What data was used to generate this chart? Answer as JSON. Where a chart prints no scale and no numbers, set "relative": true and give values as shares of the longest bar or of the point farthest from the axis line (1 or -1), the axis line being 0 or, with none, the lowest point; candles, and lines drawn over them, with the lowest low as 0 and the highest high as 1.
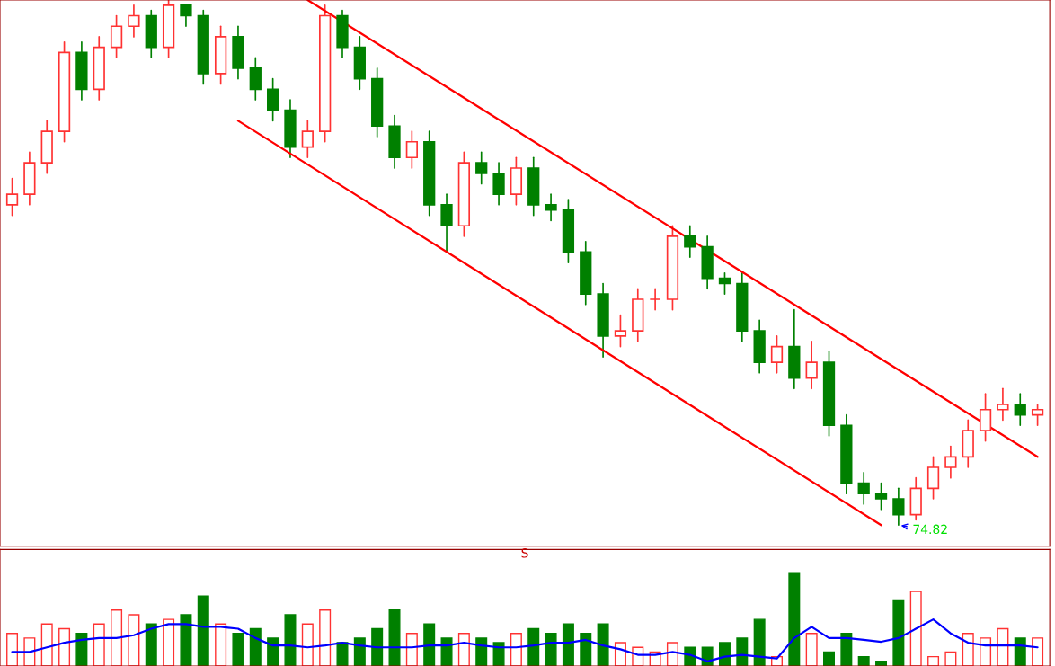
{
  "chart_data": [
    {
      "type": "candlestick",
      "relative": true,
      "categories": [
        null,
        null,
        null,
        null,
        null,
        null,
        null,
        null,
        null,
        null,
        null,
        null,
        null,
        null,
        null,
        null,
        null,
        null,
        null,
        null,
        null,
        null,
        null,
        null,
        null,
        null,
        null,
        null,
        null,
        null,
        null,
        null,
        null,
        null,
        null,
        null,
        null,
        null,
        null,
        null,
        null,
        null,
        null,
        null,
        null,
        null,
        null,
        null,
        null,
        null,
        null,
        null,
        null,
        null,
        null,
        null,
        null,
        null,
        null,
        null
      ],
      "ohlc": [
        [
          0.61,
          0.66,
          0.59,
          0.63
        ],
        [
          0.63,
          0.71,
          0.61,
          0.69
        ],
        [
          0.69,
          0.77,
          0.67,
          0.75
        ],
        [
          0.75,
          0.92,
          0.73,
          0.9
        ],
        [
          0.9,
          0.92,
          0.81,
          0.83
        ],
        [
          0.83,
          0.93,
          0.81,
          0.91
        ],
        [
          0.91,
          0.97,
          0.89,
          0.95
        ],
        [
          0.95,
          0.99,
          0.93,
          0.97
        ],
        [
          0.97,
          0.98,
          0.89,
          0.91
        ],
        [
          0.91,
          1.0,
          0.89,
          0.99
        ],
        [
          0.99,
          0.99,
          0.95,
          0.97
        ],
        [
          0.97,
          0.98,
          0.84,
          0.86
        ],
        [
          0.86,
          0.95,
          0.84,
          0.93
        ],
        [
          0.93,
          0.95,
          0.85,
          0.87
        ],
        [
          0.87,
          0.89,
          0.81,
          0.83
        ],
        [
          0.83,
          0.85,
          0.77,
          0.79
        ],
        [
          0.79,
          0.81,
          0.7,
          0.72
        ],
        [
          0.72,
          0.77,
          0.7,
          0.75
        ],
        [
          0.75,
          0.99,
          0.73,
          0.97
        ],
        [
          0.97,
          0.98,
          0.89,
          0.91
        ],
        [
          0.91,
          0.93,
          0.83,
          0.85
        ],
        [
          0.85,
          0.87,
          0.74,
          0.76
        ],
        [
          0.76,
          0.78,
          0.68,
          0.7
        ],
        [
          0.7,
          0.75,
          0.68,
          0.73
        ],
        [
          0.73,
          0.75,
          0.59,
          0.61
        ],
        [
          0.61,
          0.63,
          0.52,
          0.57
        ],
        [
          0.57,
          0.71,
          0.55,
          0.69
        ],
        [
          0.69,
          0.71,
          0.65,
          0.67
        ],
        [
          0.67,
          0.69,
          0.61,
          0.63
        ],
        [
          0.63,
          0.7,
          0.61,
          0.68
        ],
        [
          0.68,
          0.7,
          0.59,
          0.61
        ],
        [
          0.61,
          0.63,
          0.58,
          0.6
        ],
        [
          0.6,
          0.62,
          0.5,
          0.52
        ],
        [
          0.52,
          0.54,
          0.42,
          0.44
        ],
        [
          0.44,
          0.46,
          0.32,
          0.36
        ],
        [
          0.36,
          0.4,
          0.34,
          0.37
        ],
        [
          0.37,
          0.45,
          0.35,
          0.43
        ],
        [
          0.43,
          0.45,
          0.41,
          0.43
        ],
        [
          0.43,
          0.57,
          0.41,
          0.55
        ],
        [
          0.55,
          0.57,
          0.51,
          0.53
        ],
        [
          0.53,
          0.55,
          0.45,
          0.47
        ],
        [
          0.47,
          0.48,
          0.44,
          0.46
        ],
        [
          0.46,
          0.48,
          0.35,
          0.37
        ],
        [
          0.37,
          0.39,
          0.29,
          0.31
        ],
        [
          0.31,
          0.36,
          0.29,
          0.34
        ],
        [
          0.34,
          0.41,
          0.26,
          0.28
        ],
        [
          0.28,
          0.35,
          0.26,
          0.31
        ],
        [
          0.31,
          0.33,
          0.17,
          0.19
        ],
        [
          0.19,
          0.21,
          0.06,
          0.08
        ],
        [
          0.08,
          0.1,
          0.04,
          0.06
        ],
        [
          0.06,
          0.08,
          0.03,
          0.05
        ],
        [
          0.05,
          0.07,
          0.0,
          0.02
        ],
        [
          0.02,
          0.09,
          0.01,
          0.07
        ],
        [
          0.07,
          0.13,
          0.05,
          0.11
        ],
        [
          0.11,
          0.15,
          0.09,
          0.13
        ],
        [
          0.13,
          0.2,
          0.11,
          0.18
        ],
        [
          0.18,
          0.25,
          0.16,
          0.22
        ],
        [
          0.22,
          0.26,
          0.2,
          0.23
        ],
        [
          0.23,
          0.25,
          0.19,
          0.21
        ],
        [
          0.21,
          0.23,
          0.19,
          0.22
        ]
      ],
      "colors": [
        "#ff3232",
        "#ff3232",
        "#ff3232",
        "#ff3232",
        "#008000",
        "#ff3232",
        "#ff3232",
        "#ff3232",
        "#008000",
        "#ff3232",
        "#008000",
        "#008000",
        "#ff3232",
        "#008000",
        "#008000",
        "#008000",
        "#008000",
        "#ff3232",
        "#ff3232",
        "#008000",
        "#008000",
        "#008000",
        "#008000",
        "#ff3232",
        "#008000",
        "#008000",
        "#ff3232",
        "#008000",
        "#008000",
        "#ff3232",
        "#008000",
        "#008000",
        "#008000",
        "#008000",
        "#008000",
        "#ff3232",
        "#ff3232",
        "#ff3232",
        "#ff3232",
        "#008000",
        "#008000",
        "#008000",
        "#008000",
        "#008000",
        "#ff3232",
        "#008000",
        "#ff3232",
        "#008000",
        "#008000",
        "#008000",
        "#008000",
        "#008000",
        "#ff3232",
        "#ff3232",
        "#ff3232",
        "#ff3232",
        "#ff3232",
        "#ff3232",
        "#008000",
        "#ff3232"
      ],
      "series": [
        {
          "type": "line",
          "color": "#ff0000",
          "values": [
            null,
            null,
            null,
            null,
            null,
            null,
            null,
            null,
            null,
            null,
            null,
            null,
            null,
            null,
            null,
            null,
            null,
            1.0,
            null,
            null,
            null,
            null,
            null,
            null,
            null,
            null,
            null,
            null,
            null,
            null,
            null,
            null,
            null,
            null,
            null,
            null,
            null,
            null,
            null,
            null,
            null,
            null,
            null,
            null,
            null,
            null,
            null,
            null,
            null,
            null,
            null,
            null,
            null,
            null,
            null,
            null,
            null,
            null,
            null,
            0.13
          ]
        },
        {
          "type": "line",
          "color": "#ff0000",
          "values": [
            null,
            null,
            null,
            null,
            null,
            null,
            null,
            null,
            null,
            null,
            null,
            null,
            null,
            0.77,
            null,
            null,
            null,
            null,
            null,
            null,
            null,
            null,
            null,
            null,
            null,
            null,
            null,
            null,
            null,
            null,
            null,
            null,
            null,
            null,
            null,
            null,
            null,
            null,
            null,
            null,
            null,
            null,
            null,
            null,
            null,
            null,
            null,
            null,
            null,
            null,
            0.0,
            null,
            null,
            null,
            null,
            null,
            null,
            null,
            null,
            null
          ]
        }
      ],
      "annotations": [
        "74.82"
      ]
    },
    {
      "type": "bar",
      "relative": true,
      "categories": [
        null,
        null,
        null,
        null,
        null,
        null,
        null,
        null,
        null,
        null,
        null,
        null,
        null,
        null,
        null,
        null,
        null,
        null,
        null,
        null,
        null,
        null,
        null,
        null,
        null,
        null,
        null,
        null,
        null,
        null,
        null,
        null,
        null,
        null,
        null,
        null,
        null,
        null,
        null,
        null,
        null,
        null,
        null,
        null,
        null,
        null,
        null,
        null,
        null,
        null,
        null,
        null,
        null,
        null,
        null,
        null,
        null,
        null,
        null,
        null
      ],
      "values": [
        0.35,
        0.3,
        0.45,
        0.4,
        0.35,
        0.45,
        0.6,
        0.55,
        0.45,
        0.5,
        0.55,
        0.75,
        0.45,
        0.35,
        0.4,
        0.3,
        0.55,
        0.45,
        0.6,
        0.25,
        0.3,
        0.4,
        0.6,
        0.35,
        0.45,
        0.3,
        0.35,
        0.3,
        0.25,
        0.35,
        0.4,
        0.35,
        0.45,
        0.35,
        0.45,
        0.25,
        0.2,
        0.15,
        0.25,
        0.2,
        0.2,
        0.25,
        0.3,
        0.5,
        0.1,
        1.0,
        0.35,
        0.15,
        0.35,
        0.1,
        0.05,
        0.7,
        0.8,
        0.1,
        0.15,
        0.35,
        0.3,
        0.4,
        0.3,
        0.3
      ],
      "colors": [
        "#ff3232",
        "#ff3232",
        "#ff3232",
        "#ff3232",
        "#008000",
        "#ff3232",
        "#ff3232",
        "#ff3232",
        "#008000",
        "#ff3232",
        "#008000",
        "#008000",
        "#ff3232",
        "#008000",
        "#008000",
        "#008000",
        "#008000",
        "#ff3232",
        "#ff3232",
        "#008000",
        "#008000",
        "#008000",
        "#008000",
        "#ff3232",
        "#008000",
        "#008000",
        "#ff3232",
        "#008000",
        "#008000",
        "#ff3232",
        "#008000",
        "#008000",
        "#008000",
        "#008000",
        "#008000",
        "#ff3232",
        "#ff3232",
        "#ff3232",
        "#ff3232",
        "#008000",
        "#008000",
        "#008000",
        "#008000",
        "#008000",
        "#ff3232",
        "#008000",
        "#ff3232",
        "#008000",
        "#008000",
        "#008000",
        "#008000",
        "#008000",
        "#ff3232",
        "#ff3232",
        "#ff3232",
        "#ff3232",
        "#ff3232",
        "#ff3232",
        "#008000",
        "#ff3232"
      ],
      "series": [
        {
          "type": "line",
          "color": "#0000ff",
          "values": [
            0.15,
            0.15,
            0.2,
            0.25,
            0.28,
            0.3,
            0.3,
            0.33,
            0.4,
            0.45,
            0.45,
            0.42,
            0.42,
            0.4,
            0.3,
            0.22,
            0.22,
            0.2,
            0.22,
            0.25,
            0.22,
            0.2,
            0.2,
            0.2,
            0.22,
            0.22,
            0.25,
            0.22,
            0.2,
            0.2,
            0.22,
            0.25,
            0.25,
            0.28,
            0.22,
            0.18,
            0.12,
            0.12,
            0.15,
            0.12,
            0.05,
            0.1,
            0.12,
            0.1,
            0.08,
            0.3,
            0.42,
            0.3,
            0.3,
            0.28,
            0.26,
            0.3,
            0.4,
            0.5,
            0.35,
            0.25,
            0.22,
            0.22,
            0.22,
            0.2
          ]
        }
      ],
      "annotations": [
        "S"
      ]
    }
  ]
}
